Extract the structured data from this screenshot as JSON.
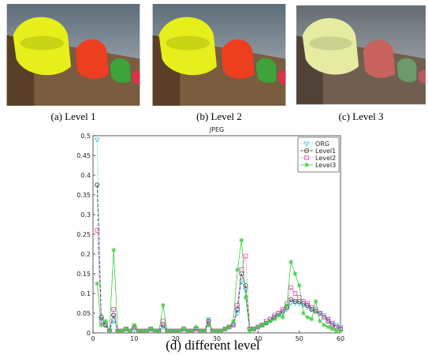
{
  "figure": {
    "captions": [
      "(a) Level 1",
      "(b) Level 2",
      "(c) Level 3",
      "(d) different level"
    ]
  },
  "chart_data": {
    "type": "line",
    "title": "JPEG",
    "x": [
      1,
      2,
      3,
      4,
      5,
      6,
      7,
      8,
      9,
      10,
      11,
      12,
      13,
      14,
      15,
      16,
      17,
      18,
      19,
      20,
      21,
      22,
      23,
      24,
      25,
      26,
      27,
      28,
      29,
      30,
      31,
      32,
      33,
      34,
      35,
      36,
      37,
      38,
      39,
      40,
      41,
      42,
      43,
      44,
      45,
      46,
      47,
      48,
      49,
      50,
      51,
      52,
      53,
      54,
      55,
      56,
      57,
      58,
      59,
      60
    ],
    "xlim": [
      0,
      60
    ],
    "xticks": [
      0,
      10,
      20,
      30,
      40,
      50,
      60
    ],
    "ylim": [
      0,
      0.5
    ],
    "yticks": [
      0,
      0.05,
      0.1,
      0.15,
      0.2,
      0.25,
      0.3,
      0.35,
      0.4,
      0.45,
      0.5
    ],
    "legend": "upper right",
    "series": [
      {
        "name": "ORG",
        "color": "#3cc8dc",
        "marker": "triangle",
        "dash": "dotted",
        "values": [
          0.49,
          0.035,
          0.02,
          0.005,
          0.03,
          0.005,
          0.005,
          0.01,
          0.005,
          0.01,
          0.005,
          0.005,
          0.005,
          0.01,
          0.005,
          0.005,
          0.015,
          0.005,
          0.005,
          0.005,
          0.005,
          0.01,
          0.005,
          0.005,
          0.01,
          0.005,
          0.005,
          0.035,
          0.005,
          0.005,
          0.005,
          0.01,
          0.015,
          0.02,
          0.05,
          0.13,
          0.11,
          0.01,
          0.01,
          0.015,
          0.02,
          0.025,
          0.03,
          0.04,
          0.045,
          0.05,
          0.06,
          0.075,
          0.075,
          0.075,
          0.07,
          0.065,
          0.06,
          0.055,
          0.05,
          0.045,
          0.035,
          0.025,
          0.02,
          0.015
        ]
      },
      {
        "name": "Level1",
        "color": "#333333",
        "marker": "circle",
        "dash": "dashed",
        "values": [
          0.375,
          0.04,
          0.02,
          0.005,
          0.045,
          0.005,
          0.005,
          0.01,
          0.005,
          0.015,
          0.005,
          0.005,
          0.005,
          0.01,
          0.005,
          0.005,
          0.02,
          0.005,
          0.005,
          0.005,
          0.005,
          0.01,
          0.005,
          0.005,
          0.01,
          0.005,
          0.005,
          0.03,
          0.005,
          0.005,
          0.005,
          0.01,
          0.015,
          0.02,
          0.06,
          0.15,
          0.12,
          0.01,
          0.01,
          0.015,
          0.02,
          0.025,
          0.035,
          0.04,
          0.05,
          0.055,
          0.065,
          0.085,
          0.08,
          0.08,
          0.075,
          0.07,
          0.06,
          0.055,
          0.05,
          0.04,
          0.03,
          0.02,
          0.015,
          0.01
        ]
      },
      {
        "name": "Level2",
        "color": "#d64fb4",
        "marker": "square",
        "dash": "dotted",
        "values": [
          0.26,
          0.03,
          0.025,
          0.005,
          0.06,
          0.005,
          0.005,
          0.01,
          0.005,
          0.015,
          0.005,
          0.005,
          0.005,
          0.01,
          0.005,
          0.005,
          0.03,
          0.005,
          0.005,
          0.005,
          0.005,
          0.01,
          0.005,
          0.005,
          0.01,
          0.005,
          0.005,
          0.025,
          0.005,
          0.005,
          0.005,
          0.01,
          0.015,
          0.02,
          0.07,
          0.16,
          0.195,
          0.01,
          0.01,
          0.015,
          0.02,
          0.03,
          0.035,
          0.045,
          0.05,
          0.06,
          0.075,
          0.115,
          0.1,
          0.09,
          0.08,
          0.075,
          0.065,
          0.06,
          0.05,
          0.04,
          0.035,
          0.025,
          0.015,
          0.01
        ]
      },
      {
        "name": "Level3",
        "color": "#3ccc3c",
        "marker": "star",
        "dash": "solid",
        "values": [
          0.125,
          0.02,
          0.03,
          0.005,
          0.21,
          0.005,
          0.005,
          0.01,
          0.005,
          0.02,
          0.005,
          0.005,
          0.005,
          0.01,
          0.005,
          0.005,
          0.07,
          0.005,
          0.005,
          0.005,
          0.005,
          0.01,
          0.005,
          0.005,
          0.015,
          0.005,
          0.005,
          0.02,
          0.005,
          0.005,
          0.005,
          0.01,
          0.015,
          0.03,
          0.16,
          0.235,
          0.09,
          0.005,
          0.01,
          0.015,
          0.02,
          0.025,
          0.03,
          0.035,
          0.045,
          0.04,
          0.07,
          0.18,
          0.15,
          0.12,
          0.05,
          0.04,
          0.035,
          0.08,
          0.03,
          0.02,
          0.015,
          0.01,
          0.005,
          0.005
        ]
      }
    ]
  }
}
